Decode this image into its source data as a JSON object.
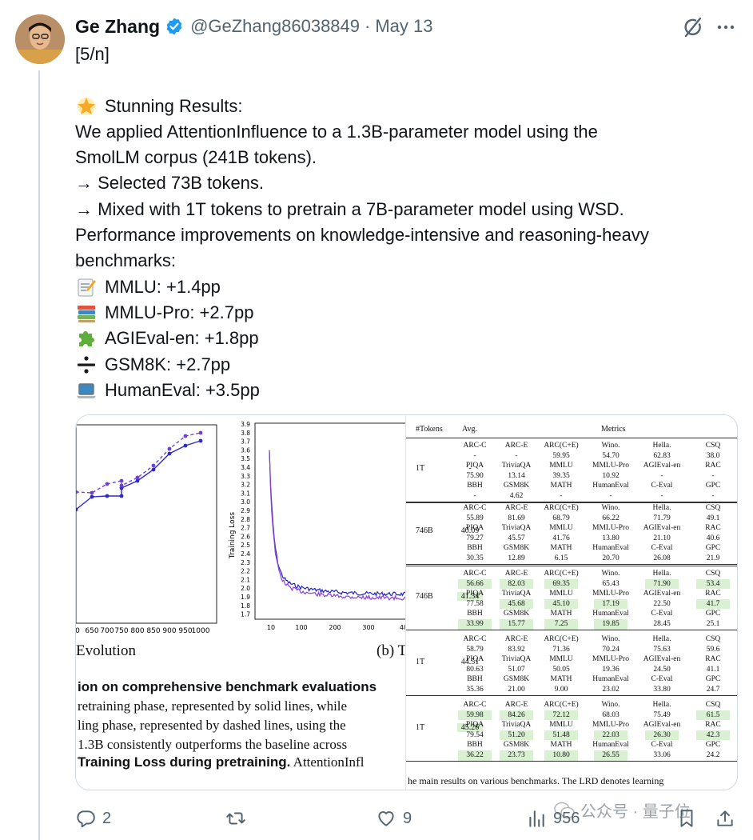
{
  "tweet": {
    "author_name": "Ge Zhang",
    "handle": "@GeZhang86038849",
    "separator": "·",
    "date": "May 13",
    "lines": [
      "[5/n]",
      "",
      "Stunning Results:",
      "We applied AttentionInfluence to a 1.3B-parameter model using the",
      "SmolLM corpus (241B tokens).",
      "→ Selected 73B tokens.",
      "→ Mixed with 1T tokens to pretrain a 7B-parameter model using WSD.",
      "Performance improvements on knowledge-intensive and reasoning-heavy",
      "benchmarks:",
      "MMLU: +1.4pp",
      "MMLU-Pro: +2.7pp",
      "AGIEval-en: +1.8pp",
      "GSM8K: +2.7pp",
      "HumanEval: +3.5pp"
    ],
    "emoji_icons": [
      "glowing-star-icon",
      "memo-icon",
      "books-icon",
      "puzzle-piece-icon",
      "divide-icon",
      "laptop-icon"
    ]
  },
  "media": {
    "left_fig": {
      "x_ticks": [
        "0",
        "650",
        "700",
        "750",
        "800",
        "850",
        "900",
        "950",
        "1000"
      ],
      "y_ticks": [
        "3.9",
        "3.8",
        "3.7",
        "3.6",
        "3.5",
        "3.4",
        "3.3",
        "3.2",
        "3.1",
        "3.0",
        "2.9",
        "2.8",
        "2.7",
        "2.6",
        "2.5",
        "2.4",
        "2.3",
        "2.2",
        "2.1",
        "2.0",
        "1.9",
        "1.8",
        "1.7"
      ],
      "y_label": "Training Loss",
      "x_ticks_b": [
        "10",
        "100",
        "200",
        "300",
        "40"
      ],
      "caption_a": "Evolution",
      "caption_b": "(b) T",
      "bold_caption": "ion on comprehensive benchmark evaluations",
      "text_lines": [
        "retraining phase, represented by solid lines, while",
        "ling phase, represented by dashed lines, using the",
        "1.3B consistently outperforms the baseline across"
      ],
      "last_line_bold": "Training Loss during pretraining.",
      "last_line_rest": " AttentionInfl"
    },
    "table": {
      "headers": [
        "#Tokens",
        "Avg.",
        "Metrics"
      ],
      "columns": [
        "ARC-C",
        "ARC-E",
        "ARC(C+E)",
        "Wino.",
        "Hella.",
        "CSQ"
      ],
      "rows": [
        {
          "tokens": "1T",
          "avg": "-",
          "cells": [
            [
              "ARC-C",
              "ARC-E",
              "ARC(C+E)",
              "Wino.",
              "Hella.",
              "CSQ"
            ],
            [
              "-",
              "-",
              "59.95",
              "54.70",
              "62.83",
              "38.0"
            ],
            [
              "PIQA",
              "TriviaQA",
              "MMLU",
              "MMLU-Pro",
              "AGIEval-en",
              "RAC"
            ],
            [
              "75.90",
              "13.14",
              "39.35",
              "10.92",
              "-",
              "-"
            ],
            [
              "BBH",
              "GSM8K",
              "MATH",
              "HumanEval",
              "C-Eval",
              "GPC"
            ],
            [
              "-",
              "4.62",
              "-",
              "-",
              "-",
              "-"
            ]
          ]
        },
        {
          "tokens": "746B",
          "avg": "40.09",
          "cells": [
            [
              "ARC-C",
              "ARC-E",
              "ARC(C+E)",
              "Wino.",
              "Hella.",
              "CSQ"
            ],
            [
              "55.89",
              "81.69",
              "68.79",
              "66.22",
              "71.79",
              "49.1"
            ],
            [
              "PIQA",
              "TriviaQA",
              "MMLU",
              "MMLU-Pro",
              "AGIEval-en",
              "RAC"
            ],
            [
              "79.27",
              "45.57",
              "41.76",
              "13.80",
              "21.10",
              "40.6"
            ],
            [
              "BBH",
              "GSM8K",
              "MATH",
              "HumanEval",
              "C-Eval",
              "GPC"
            ],
            [
              "30.35",
              "12.89",
              "6.15",
              "20.70",
              "26.08",
              "21.9"
            ]
          ]
        },
        {
          "tokens": "746B",
          "avg": "41.34",
          "cells": [
            [
              "ARC-C",
              "ARC-E",
              "ARC(C+E)",
              "Wino.",
              "Hella.",
              "CSQ"
            ],
            [
              "56.66",
              "82.03",
              "69.35",
              "65.43",
              "71.90",
              "53.4"
            ],
            [
              "PIQA",
              "TriviaQA",
              "MMLU",
              "MMLU-Pro",
              "AGIEval-en",
              "RAC"
            ],
            [
              "77.58",
              "45.68",
              "45.10",
              "17.19",
              "22.50",
              "41.7"
            ],
            [
              "BBH",
              "GSM8K",
              "MATH",
              "HumanEval",
              "C-Eval",
              "GPC"
            ],
            [
              "33.99",
              "15.77",
              "7.25",
              "19.85",
              "28.45",
              "25.1"
            ]
          ]
        },
        {
          "tokens": "1T",
          "avg": "44.51",
          "cells": [
            [
              "ARC-C",
              "ARC-E",
              "ARC(C+E)",
              "Wino.",
              "Hella.",
              "CSQ"
            ],
            [
              "58.79",
              "83.92",
              "71.36",
              "70.24",
              "75.63",
              "59.6"
            ],
            [
              "PIQA",
              "TriviaQA",
              "MMLU",
              "MMLU-Pro",
              "AGIEval-en",
              "RAC"
            ],
            [
              "80.63",
              "51.07",
              "50.05",
              "19.36",
              "24.50",
              "41.1"
            ],
            [
              "BBH",
              "GSM8K",
              "MATH",
              "HumanEval",
              "C-Eval",
              "GPC"
            ],
            [
              "35.36",
              "21.00",
              "9.00",
              "23.02",
              "33.80",
              "24.7"
            ]
          ]
        },
        {
          "tokens": "1T",
          "avg": "45.26",
          "cells": [
            [
              "ARC-C",
              "ARC-E",
              "ARC(C+E)",
              "Wino.",
              "Hella.",
              "CSQ"
            ],
            [
              "59.98",
              "84.26",
              "72.12",
              "68.03",
              "75.49",
              "61.5"
            ],
            [
              "PIQA",
              "TriviaQA",
              "MMLU",
              "MMLU-Pro",
              "AGIEval-en",
              "RAC"
            ],
            [
              "79.54",
              "51.20",
              "51.48",
              "22.03",
              "26.30",
              "42.3"
            ],
            [
              "BBH",
              "GSM8K",
              "MATH",
              "HumanEval",
              "C-Eval",
              "GPC"
            ],
            [
              "36.22",
              "23.73",
              "10.80",
              "26.55",
              "33.06",
              "24.2"
            ]
          ]
        }
      ],
      "footnote": "he main results on various benchmarks. The LRD denotes learning"
    }
  },
  "actions": {
    "reply_count": "2",
    "retweet_count": "",
    "like_count": "9",
    "view_count": "956"
  },
  "watermark": {
    "text": "公众号 · 量子位"
  },
  "colors": {
    "secondary_text": "#536471",
    "verified_blue": "#1d9bf0",
    "highlight_green": "#d9f1d2",
    "series_blue": "#1f1fd0",
    "series_purple": "#7a3fd1"
  }
}
